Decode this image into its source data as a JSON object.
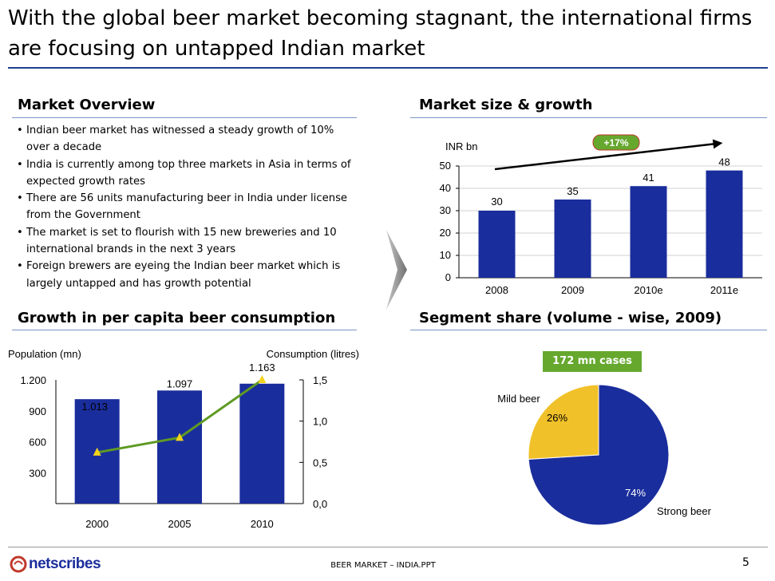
{
  "slide": {
    "title": "With the global beer market becoming stagnant, the international firms are focusing on untapped Indian market",
    "page_number": "5",
    "footer_text": "BEER MARKET – INDIA.PPT",
    "logo_text": "netscribes",
    "accent_color": "#1a2d9c",
    "rule_color": "#1f3f8f"
  },
  "market_overview": {
    "heading": "Market Overview",
    "bullets": [
      "Indian beer market has witnessed a steady growth of 10% over a decade",
      "India is currently among top three markets in Asia in terms of expected growth rates",
      "There are 56 units manufacturing beer in India under license from the Government",
      "The market is set to flourish with 15 new breweries and 10 international brands in the next 3 years",
      "Foreign brewers are eyeing the Indian beer market which is largely untapped and has growth potential"
    ]
  },
  "market_size": {
    "heading": "Market size & growth"
  },
  "per_capita": {
    "heading": "Growth in per capita beer consumption"
  },
  "segment": {
    "heading": "Segment share (volume - wise, 2009)",
    "badge": "172 mn cases",
    "badge_color": "#66a82e"
  },
  "chart_data": [
    {
      "type": "bar",
      "unit_label": "INR bn",
      "categories": [
        "2008",
        "2009",
        "2010e",
        "2011e"
      ],
      "values": [
        30,
        35,
        41,
        48
      ],
      "value_labels": [
        "30",
        "35",
        "41",
        "48"
      ],
      "ylim": [
        0,
        50
      ],
      "yticks": [
        0,
        10,
        20,
        30,
        40,
        50
      ],
      "ytick_labels": [
        "0",
        "10",
        "20",
        "30",
        "40",
        "50"
      ],
      "growth_annotation": "+17%",
      "bar_color": "#1a2d9c",
      "badge_color": "#66a82e",
      "grid": true
    },
    {
      "type": "bar",
      "categories": [
        "2000",
        "2005",
        "2010"
      ],
      "left_axis_label": "Population (mn)",
      "right_axis_label": "Consumption (litres)",
      "series": [
        {
          "values": [
            1013,
            1097,
            1163
          ],
          "value_labels": [
            "1.013",
            "1.097",
            "1.163"
          ],
          "axis": "left",
          "type": "bar",
          "color": "#1a2d9c"
        },
        {
          "values": [
            0.62,
            0.8,
            1.5
          ],
          "axis": "right",
          "type": "line",
          "color": "#5f9a24",
          "marker_color": "#f2d21c"
        }
      ],
      "ylim_left": [
        0,
        1200
      ],
      "yticks_left": [
        300,
        600,
        900,
        1200
      ],
      "ytick_labels_left": [
        "300",
        "600",
        "900",
        "1.200"
      ],
      "ylim_right": [
        0,
        1.5
      ],
      "yticks_right": [
        0,
        0.5,
        1.0,
        1.5
      ],
      "ytick_labels_right": [
        "0,0",
        "0,5",
        "1,0",
        "1,5"
      ]
    },
    {
      "type": "pie",
      "categories": [
        "Mild beer",
        "Strong beer"
      ],
      "values": [
        26,
        74
      ],
      "value_labels": [
        "26%",
        "74%"
      ],
      "colors": [
        "#f1c12a",
        "#1a2d9c"
      ]
    }
  ]
}
